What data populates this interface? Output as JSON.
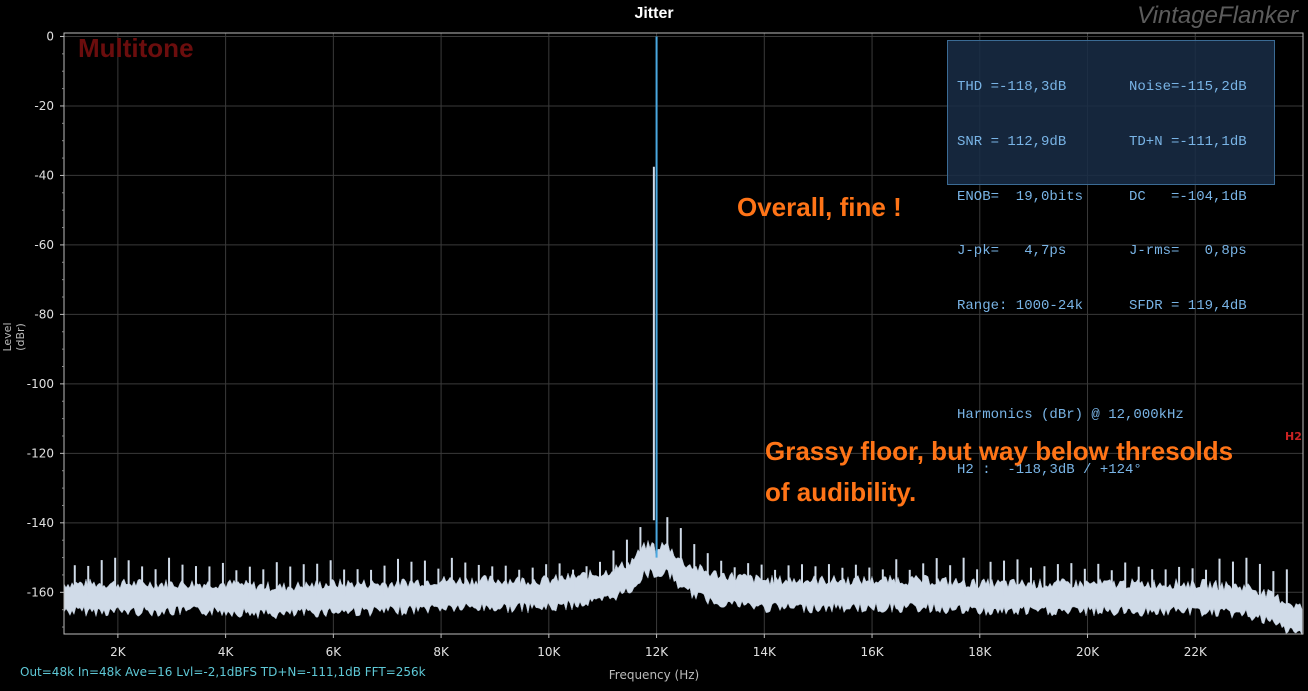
{
  "title": "Jitter",
  "brand": "VintageFlanker",
  "mode_label": "Multitone",
  "footer": "Out=48k In=48k Ave=16 Lvl=-2,1dBFS TD+N=-111,1dB FFT=256k",
  "stats": {
    "rows": [
      [
        "THD =-118,3dB",
        "Noise=-115,2dB"
      ],
      [
        "SNR = 112,9dB",
        "TD+N =-111,1dB"
      ],
      [
        "ENOB=  19,0bits",
        "DC   =-104,1dB"
      ],
      [
        "J-pk=   4,7ps",
        "J-rms=   0,8ps"
      ],
      [
        "Range: 1000-24k",
        "SFDR = 119,4dB"
      ]
    ],
    "harmonics_header": "Harmonics (dBr) @ 12,000kHz",
    "h2_line": "H2 :  -118,3dB / +124°"
  },
  "annotations": {
    "overall": "Overall, fine !",
    "grassy_line1": "Grassy floor, but way below thresolds",
    "grassy_line2": "of audibility."
  },
  "h2_marker": "H2",
  "colors": {
    "background": "#000000",
    "grid": "#3a3a3a",
    "spectrum_fill": "#d0dbe8",
    "carrier_line": "#4aa8e0",
    "annotation": "#ff7417",
    "mode_label": "#6b0d0d"
  },
  "chart_data": {
    "type": "line",
    "title": "Jitter",
    "xlabel": "Frequency (Hz)",
    "ylabel": "Level (dBr)",
    "xlim": [
      1000,
      24000
    ],
    "ylim": [
      -172,
      1
    ],
    "x_ticks": [
      2000,
      4000,
      6000,
      8000,
      10000,
      12000,
      14000,
      16000,
      18000,
      20000,
      22000
    ],
    "x_tick_labels": [
      "2K",
      "4K",
      "6K",
      "8K",
      "10K",
      "12K",
      "14K",
      "16K",
      "18K",
      "20K",
      "22K"
    ],
    "y_ticks": [
      0,
      -20,
      -40,
      -60,
      -80,
      -100,
      -120,
      -140,
      -160
    ],
    "y_tick_labels": [
      "0",
      "-20",
      "-40",
      "-60",
      "-80",
      "-100",
      "-120",
      "-140",
      "-160"
    ],
    "grid": true,
    "series": [
      {
        "name": "",
        "x": [
          1000,
          2000,
          3000,
          4000,
          5000,
          6000,
          7000,
          8000,
          9000,
          10000,
          11000,
          11500,
          11800,
          12000,
          12200,
          12500,
          13000,
          14000,
          15000,
          16000,
          17000,
          18000,
          19000,
          20000,
          21000,
          22000,
          23000,
          23500,
          24000
        ],
        "y": [
          -161,
          -161,
          -161,
          -161,
          -162,
          -161,
          -161,
          -160,
          -160,
          -160,
          -158,
          -155,
          -150,
          0,
          -150,
          -155,
          -158,
          -160,
          -160,
          -160,
          -160,
          -161,
          -161,
          -161,
          -161,
          -161,
          -162,
          -165,
          -168
        ]
      }
    ],
    "carrier": {
      "x": 12000,
      "y": 0
    },
    "noise_floor_db": -161,
    "multitone_spur_peak_db": -152
  }
}
